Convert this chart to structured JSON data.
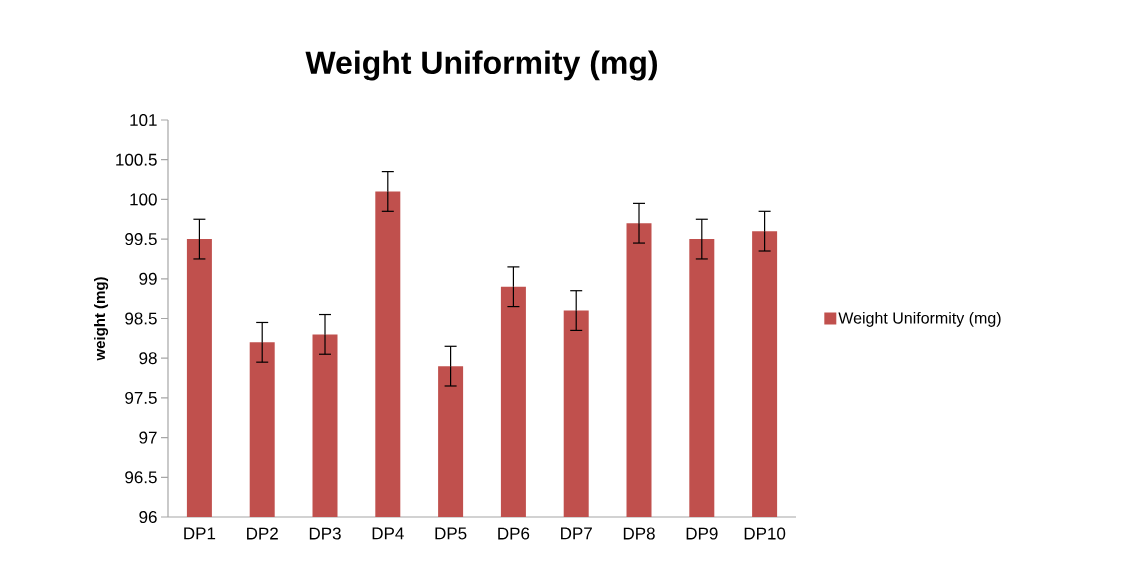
{
  "chart_data": {
    "type": "bar",
    "title": "Weight Uniformity (mg)",
    "ylabel": "weight (mg)",
    "categories": [
      "DP1",
      "DP2",
      "DP3",
      "DP4",
      "DP5",
      "DP6",
      "DP7",
      "DP8",
      "DP9",
      "DP10"
    ],
    "series": [
      {
        "name": "Weight Uniformity (mg)",
        "color": "#c0504d",
        "values": [
          99.5,
          98.2,
          98.3,
          100.1,
          97.9,
          98.9,
          98.6,
          99.7,
          99.5,
          99.6
        ],
        "errors": [
          0.25,
          0.25,
          0.25,
          0.25,
          0.25,
          0.25,
          0.25,
          0.25,
          0.25,
          0.25
        ]
      }
    ],
    "ylim": [
      96,
      101
    ],
    "yticks": [
      96,
      96.5,
      97,
      97.5,
      98,
      98.5,
      99,
      99.5,
      100,
      100.5,
      101
    ],
    "legend": "right"
  }
}
